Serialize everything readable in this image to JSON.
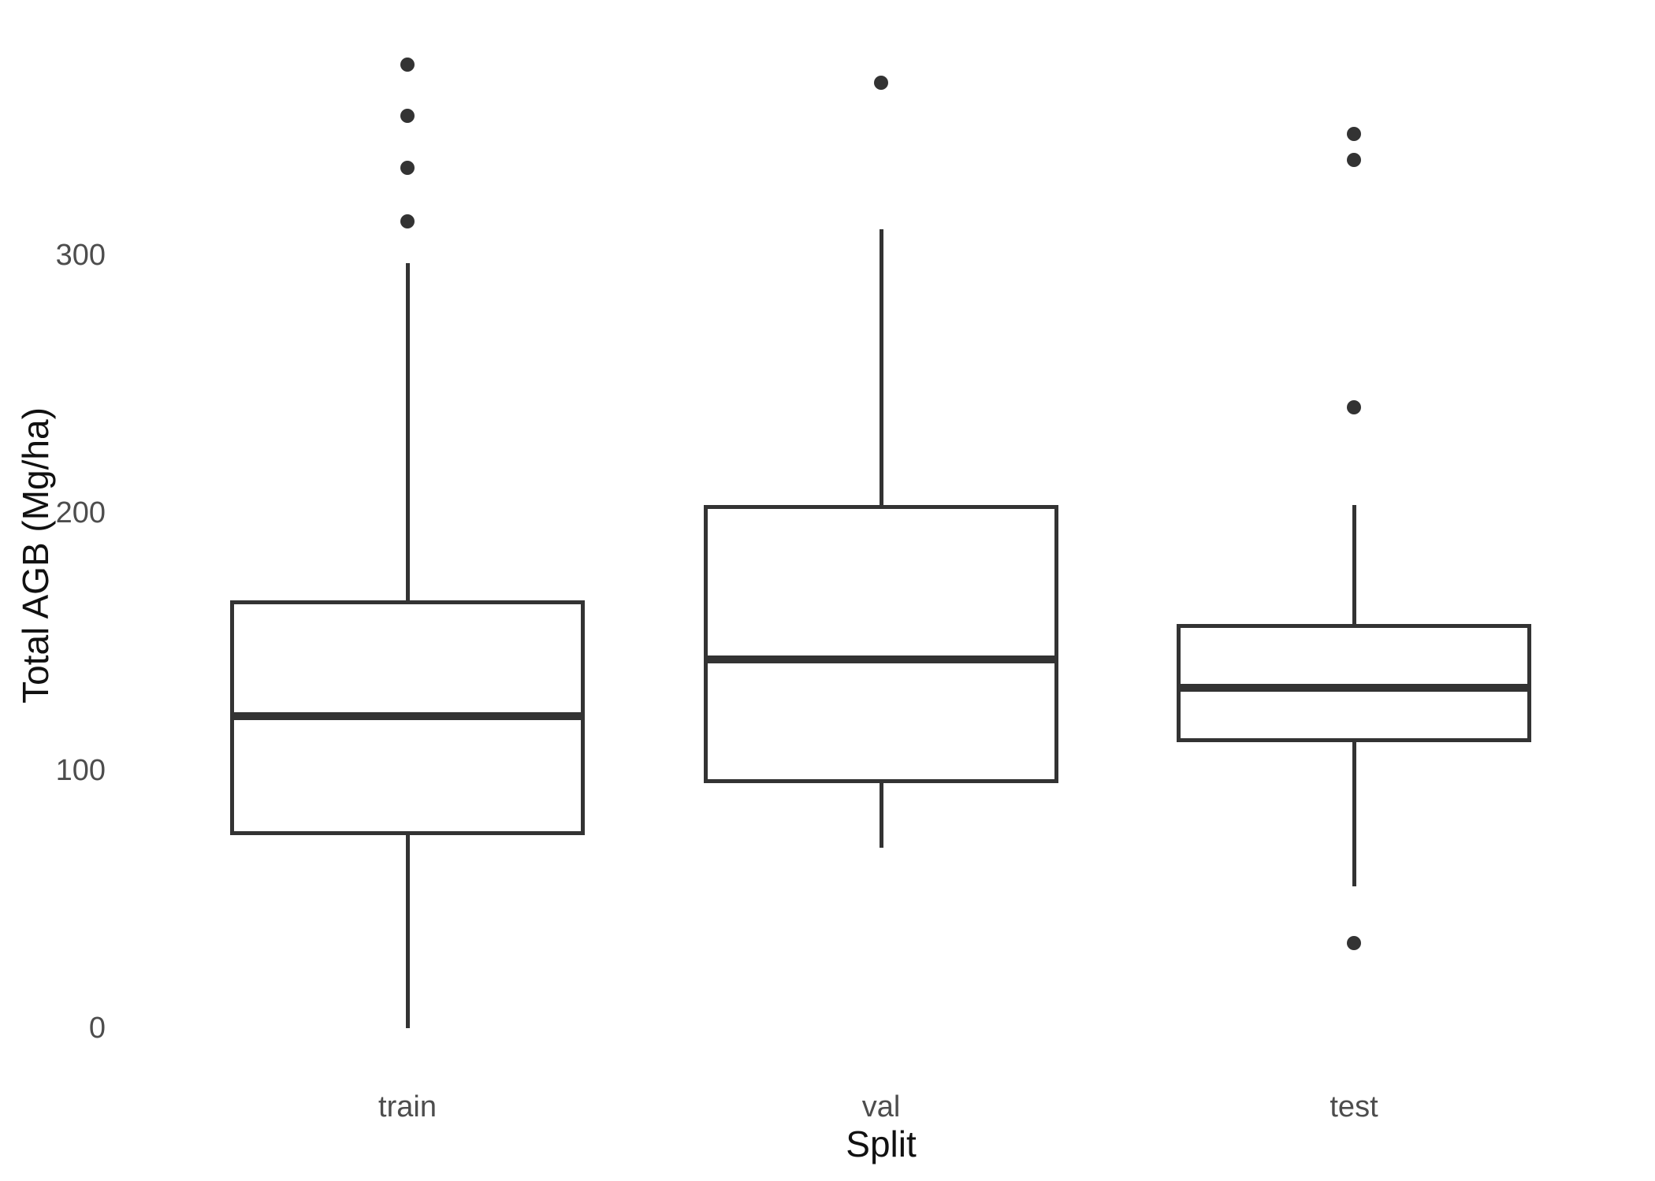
{
  "chart_data": {
    "type": "boxplot",
    "title": "",
    "xlabel": "Split",
    "ylabel": "Total AGB (Mg/ha)",
    "categories": [
      "train",
      "val",
      "test"
    ],
    "y_ticks": [
      0,
      100,
      200,
      300
    ],
    "ylim": [
      -15,
      395
    ],
    "grid": false,
    "legend": false,
    "groups": [
      {
        "label": "train",
        "whisker_low": 0,
        "q1": 75,
        "median": 121,
        "q3": 166,
        "whisker_high": 297,
        "outliers": [
          313,
          334,
          354,
          374
        ]
      },
      {
        "label": "val",
        "whisker_low": 70,
        "q1": 95,
        "median": 143,
        "q3": 203,
        "whisker_high": 310,
        "outliers": [
          367
        ]
      },
      {
        "label": "test",
        "whisker_low": 55,
        "q1": 111,
        "median": 132,
        "q3": 157,
        "whisker_high": 203,
        "outliers": [
          33,
          241,
          337,
          347
        ]
      }
    ],
    "colors": {
      "stroke": "#333333",
      "box_fill": "#ffffff",
      "tick_text": "#4d4d4d",
      "title_text": "#111111",
      "background": "#ffffff"
    }
  }
}
